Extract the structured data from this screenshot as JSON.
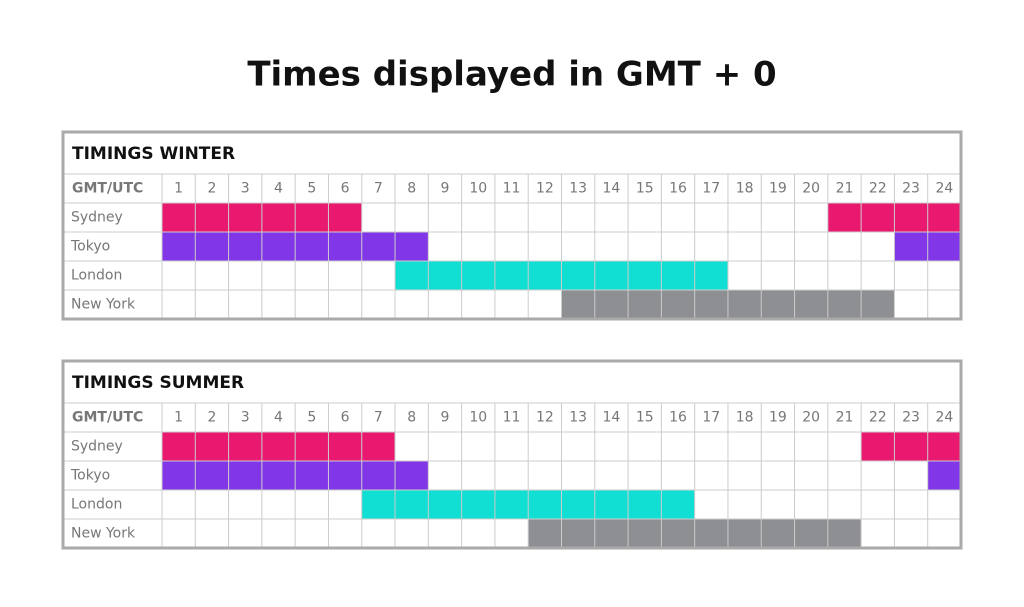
{
  "title": "Times displayed in GMT + 0",
  "tables": [
    {
      "title": "TIMINGS WINTER",
      "header_label": "GMT/UTC",
      "hours": [
        1,
        2,
        3,
        4,
        5,
        6,
        7,
        8,
        9,
        10,
        11,
        12,
        13,
        14,
        15,
        16,
        17,
        18,
        19,
        20,
        21,
        22,
        23,
        24
      ],
      "rows": [
        {
          "name": "Sydney",
          "color": "#e8196e",
          "active": [
            1,
            2,
            3,
            4,
            5,
            6,
            21,
            22,
            23,
            24
          ]
        },
        {
          "name": "Tokyo",
          "color": "#8136e8",
          "active": [
            1,
            2,
            3,
            4,
            5,
            6,
            7,
            8,
            23,
            24
          ]
        },
        {
          "name": "London",
          "color": "#12dfd3",
          "active": [
            8,
            9,
            10,
            11,
            12,
            13,
            14,
            15,
            16,
            17
          ]
        },
        {
          "name": "New York",
          "color": "#8e8f93",
          "active": [
            13,
            14,
            15,
            16,
            17,
            18,
            19,
            20,
            21,
            22
          ]
        }
      ]
    },
    {
      "title": "TIMINGS SUMMER",
      "header_label": "GMT/UTC",
      "hours": [
        1,
        2,
        3,
        4,
        5,
        6,
        7,
        8,
        9,
        10,
        11,
        12,
        13,
        14,
        15,
        16,
        17,
        18,
        19,
        20,
        21,
        22,
        23,
        24
      ],
      "rows": [
        {
          "name": "Sydney",
          "color": "#e8196e",
          "active": [
            1,
            2,
            3,
            4,
            5,
            6,
            7,
            22,
            23,
            24
          ]
        },
        {
          "name": "Tokyo",
          "color": "#8136e8",
          "active": [
            1,
            2,
            3,
            4,
            5,
            6,
            7,
            8,
            24
          ]
        },
        {
          "name": "London",
          "color": "#12dfd3",
          "active": [
            7,
            8,
            9,
            10,
            11,
            12,
            13,
            14,
            15,
            16
          ]
        },
        {
          "name": "New York",
          "color": "#8e8f93",
          "active": [
            12,
            13,
            14,
            15,
            16,
            17,
            18,
            19,
            20,
            21
          ]
        }
      ]
    }
  ]
}
